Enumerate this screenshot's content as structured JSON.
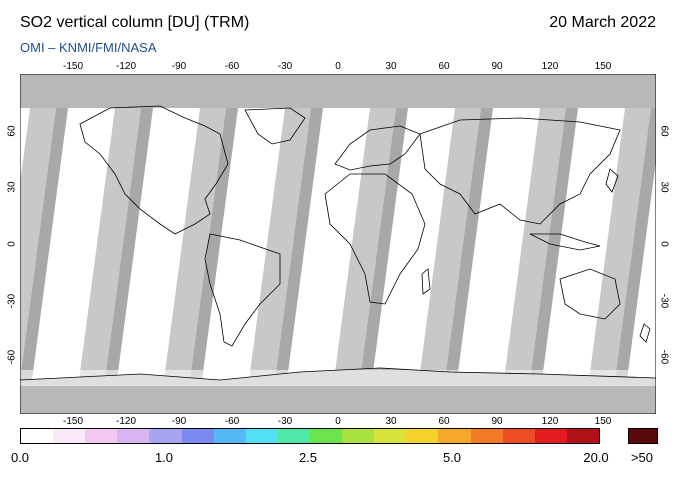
{
  "header": {
    "title": "SO2 vertical column [DU] (TRM)",
    "date": "20 March 2022",
    "source": "OMI  –  KNMI/FMI/NASA"
  },
  "map": {
    "lon_ticks": [
      "-150",
      "-120",
      "-90",
      "-60",
      "-30",
      "0",
      "30",
      "60",
      "90",
      "120",
      "150"
    ],
    "lat_ticks": [
      "60",
      "30",
      "0",
      "-30",
      "-60"
    ],
    "colors": {
      "land_shade": "#c8c8c8",
      "dark_shade": "#a8a8a8",
      "data_bg": "#ffffff",
      "coast": "#000000"
    }
  },
  "colorbar": {
    "labels": [
      "0.0",
      "1.0",
      "2.5",
      "5.0",
      "20.0"
    ],
    "over_label": ">50",
    "colors": [
      "#ffffff",
      "#fbe9f8",
      "#f3c8f0",
      "#d8b4f0",
      "#a7a4f0",
      "#7a88f0",
      "#55b8f7",
      "#52e0f4",
      "#50e8a8",
      "#6ce44e",
      "#a7e23e",
      "#d8e23a",
      "#f5d12e",
      "#f5a82a",
      "#f37b27",
      "#ef4b24",
      "#e51a1e",
      "#b0121a"
    ],
    "over_color": "#5a0a0a"
  }
}
